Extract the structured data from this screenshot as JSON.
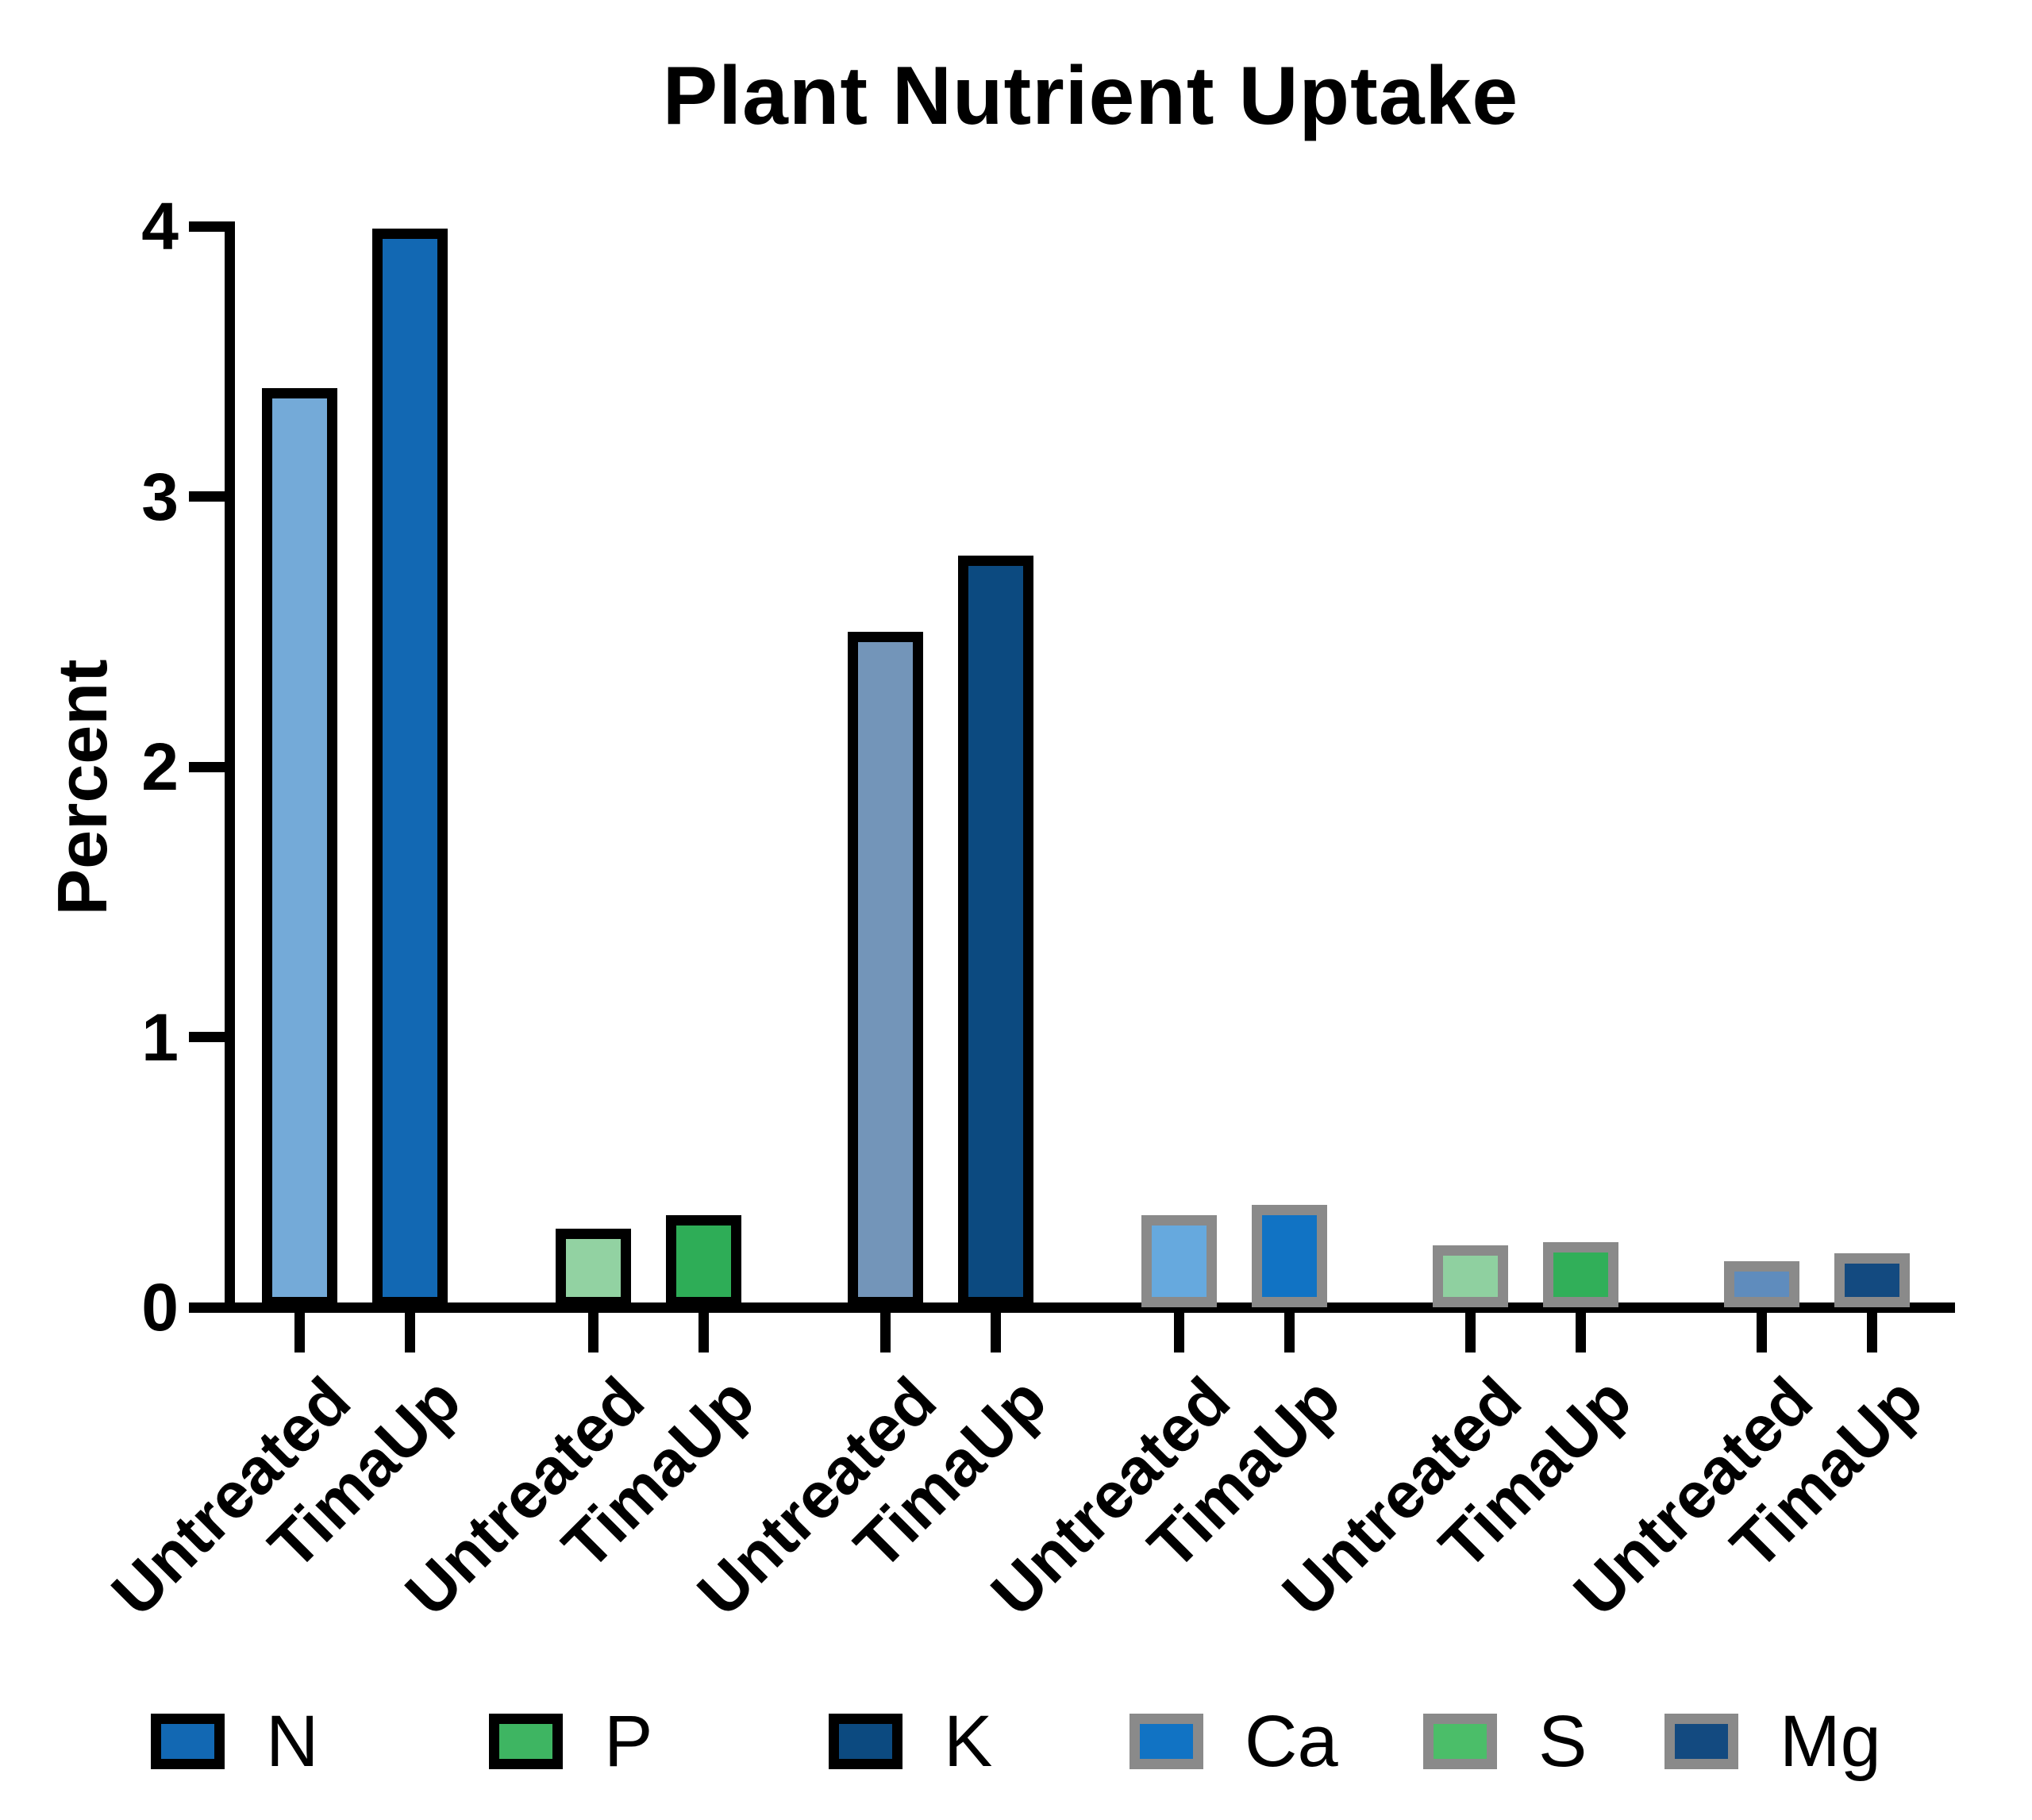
{
  "title": "Plant Nutrient Uptake",
  "chart_data": {
    "type": "bar",
    "title": "Plant Nutrient Uptake",
    "xlabel": "",
    "ylabel": "Percent",
    "ylim": [
      0,
      4
    ],
    "yticks": [
      "0",
      "1",
      "2",
      "3",
      "4"
    ],
    "grid": false,
    "legend_position": "bottom",
    "bar_labels": [
      "Untreated",
      "TimaUp"
    ],
    "groups": [
      {
        "nutrient": "N",
        "border": "#000000",
        "bars": [
          {
            "label": "Untreated",
            "value": 3.4,
            "fill": "#74AAD8"
          },
          {
            "label": "TimaUp",
            "value": 3.99,
            "fill": "#1268B3"
          }
        ]
      },
      {
        "nutrient": "P",
        "border": "#000000",
        "bars": [
          {
            "label": "Untreated",
            "value": 0.29,
            "fill": "#92D2A2"
          },
          {
            "label": "TimaUp",
            "value": 0.34,
            "fill": "#2EAD57"
          }
        ]
      },
      {
        "nutrient": "K",
        "border": "#000000",
        "bars": [
          {
            "label": "Untreated",
            "value": 2.5,
            "fill": "#7395B9"
          },
          {
            "label": "TimaUp",
            "value": 2.78,
            "fill": "#0C4A80"
          }
        ]
      },
      {
        "nutrient": "Ca",
        "border": "#8A8A8A",
        "bars": [
          {
            "label": "Untreated",
            "value": 0.34,
            "fill": "#66A9DE"
          },
          {
            "label": "TimaUp",
            "value": 0.38,
            "fill": "#1173C4"
          }
        ]
      },
      {
        "nutrient": "S",
        "border": "#8A8A8A",
        "bars": [
          {
            "label": "Untreated",
            "value": 0.23,
            "fill": "#8FD0A0"
          },
          {
            "label": "TimaUp",
            "value": 0.24,
            "fill": "#31AF59"
          }
        ]
      },
      {
        "nutrient": "Mg",
        "border": "#8A8A8A",
        "bars": [
          {
            "label": "Untreated",
            "value": 0.17,
            "fill": "#5F8CBD"
          },
          {
            "label": "TimaUp",
            "value": 0.2,
            "fill": "#134A80"
          }
        ]
      }
    ],
    "legend": [
      {
        "label": "N",
        "fill": "#1268B3",
        "border": "#000000"
      },
      {
        "label": "P",
        "fill": "#3EB562",
        "border": "#000000"
      },
      {
        "label": "K",
        "fill": "#0C4A80",
        "border": "#000000"
      },
      {
        "label": "Ca",
        "fill": "#1173C4",
        "border": "#8A8A8A"
      },
      {
        "label": "S",
        "fill": "#4BBE69",
        "border": "#8A8A8A"
      },
      {
        "label": "Mg",
        "fill": "#134A80",
        "border": "#8A8A8A"
      }
    ]
  }
}
